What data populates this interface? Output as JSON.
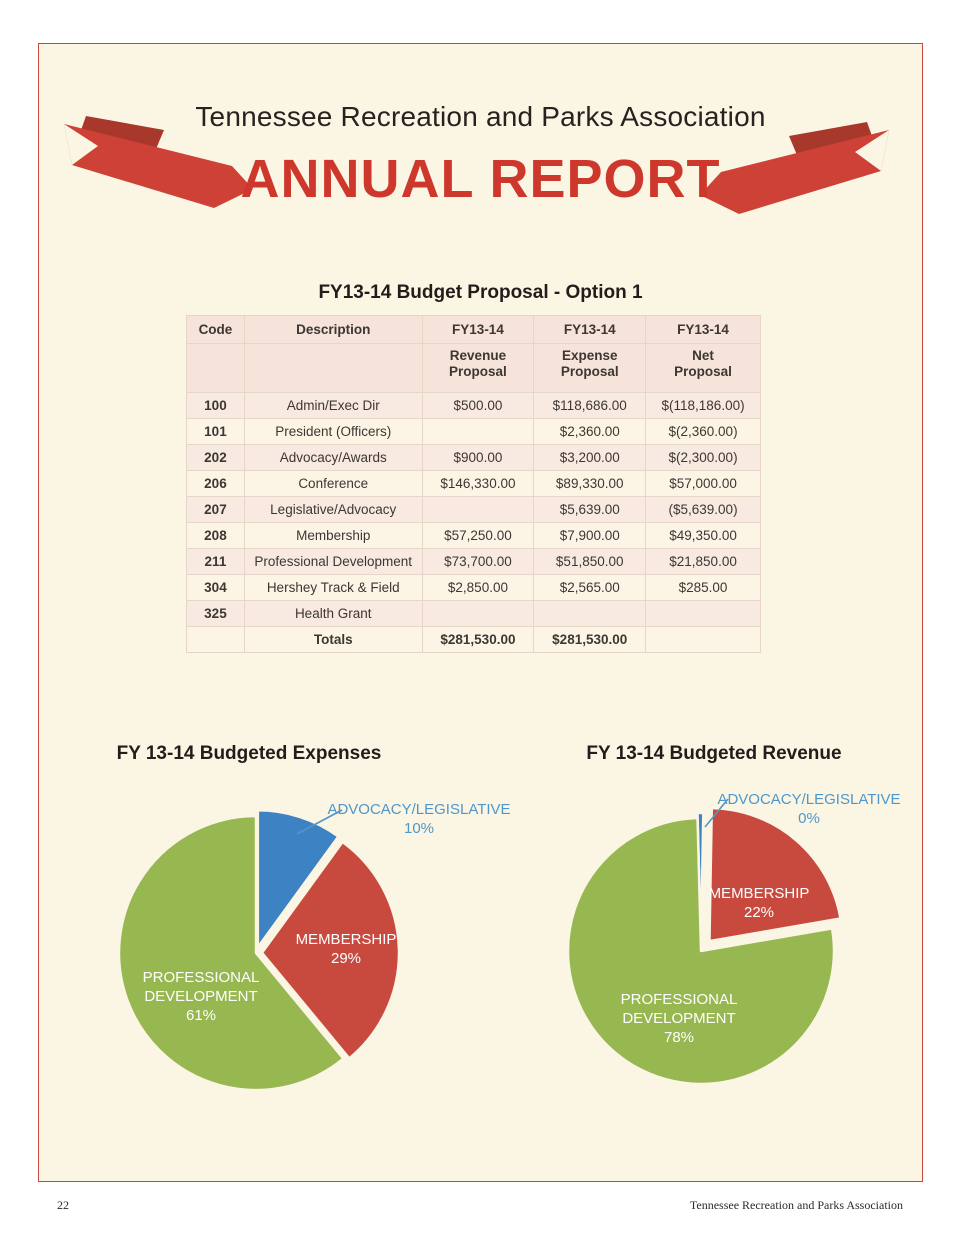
{
  "page": {
    "association_title": "Tennessee Recreation and Parks Association",
    "report_title": "ANNUAL REPORT",
    "footer_page_number": "22",
    "footer_text": "Tennessee Recreation and Parks Association"
  },
  "colors": {
    "brand_red": "#ce382c",
    "page_background": "#fbf5e4",
    "page_border": "#c9473c",
    "table_header_pink": "#f6e3da",
    "table_row_pink": "#f8eae1",
    "table_row_cream": "#fcf5e6",
    "pie_green": "#97b751",
    "pie_red": "#c8493e",
    "pie_blue": "#3d83c4",
    "callout_blue": "#4f97c9"
  },
  "budget_table": {
    "title": "FY13-14 Budget Proposal - Option 1",
    "header_row1": [
      "Code",
      "Description",
      "FY13-14",
      "FY13-14",
      "FY13-14"
    ],
    "header_row2": [
      "",
      "",
      "Revenue\nProposal",
      "Expense\nProposal",
      "Net\nProposal"
    ],
    "rows": [
      [
        "100",
        "Admin/Exec Dir",
        "$500.00",
        "$118,686.00",
        "$(118,186.00)"
      ],
      [
        "101",
        "President (Officers)",
        "",
        "$2,360.00",
        "$(2,360.00)"
      ],
      [
        "202",
        "Advocacy/Awards",
        "$900.00",
        "$3,200.00",
        "$(2,300.00)"
      ],
      [
        "206",
        "Conference",
        "$146,330.00",
        "$89,330.00",
        "$57,000.00"
      ],
      [
        "207",
        "Legislative/Advocacy",
        "",
        "$5,639.00",
        "($5,639.00)"
      ],
      [
        "208",
        "Membership",
        "$57,250.00",
        "$7,900.00",
        "$49,350.00"
      ],
      [
        "211",
        "Professional Development",
        "$73,700.00",
        "$51,850.00",
        "$21,850.00"
      ],
      [
        "304",
        "Hershey Track & Field",
        "$2,850.00",
        "$2,565.00",
        "$285.00"
      ],
      [
        "325",
        "Health Grant",
        "",
        "",
        ""
      ]
    ],
    "totals_row": [
      "",
      "Totals",
      "$281,530.00",
      "$281,530.00",
      ""
    ]
  },
  "chart_data": [
    {
      "type": "pie",
      "title": "FY 13-14 Budgeted Expenses",
      "unit": "percent",
      "start_angle": 0,
      "radius": 137,
      "gap_color": "#fbf5e4",
      "slices": [
        {
          "label": "ADVOCACY/LEGISLATIVE",
          "value": 10,
          "percent_label": "10%",
          "color": "#3d83c4",
          "explode": 6
        },
        {
          "label": "MEMBERSHIP",
          "value": 29,
          "percent_label": "29%",
          "color": "#c8493e",
          "explode": 6
        },
        {
          "label": "PROFESSIONAL DEVELOPMENT",
          "value": 61,
          "percent_label": "61%",
          "color": "#97b751",
          "explode": 0
        }
      ]
    },
    {
      "type": "pie",
      "title": "FY 13-14 Budgeted Revenue",
      "unit": "percent",
      "start_angle": -1.5,
      "radius": 133,
      "gap_color": "#fbf5e4",
      "slices": [
        {
          "label": "ADVOCACY/LEGISLATIVE",
          "value": 0,
          "percent_label": "0%",
          "color": "#3d83c4",
          "explode": 5,
          "draw_sweep": 2.5
        },
        {
          "label": "MEMBERSHIP",
          "value": 22,
          "percent_label": "22%",
          "color": "#c8493e",
          "explode": 13,
          "draw_sweep": 79.2
        },
        {
          "label": "PROFESSIONAL DEVELOPMENT",
          "value": 78,
          "percent_label": "78%",
          "color": "#97b751",
          "explode": 0,
          "draw_sweep": 278.3
        }
      ]
    }
  ]
}
